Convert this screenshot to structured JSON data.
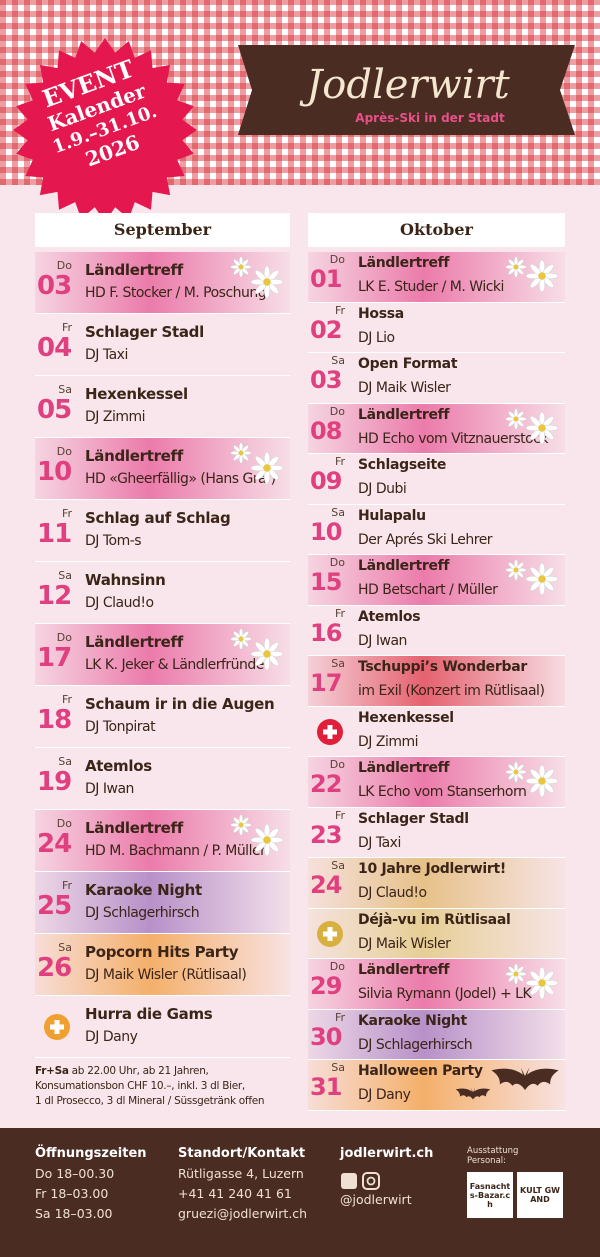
{
  "header": {
    "logo": "Jodlerwirt",
    "tagline": "Après-Ski in der Stadt",
    "badge": [
      "EVENT",
      "Kalender",
      "1.9.–31.10.",
      "2026"
    ]
  },
  "months": [
    {
      "title": "September",
      "events": [
        {
          "weekday": "Do",
          "day": "03",
          "title": "Ländlertreff",
          "subtitle": "HD F. Stocker / M. Poschung",
          "color": "#e8609a",
          "decoration": "edelweiss"
        },
        {
          "weekday": "Fr",
          "day": "04",
          "title": "Schlager Stadl",
          "subtitle": "DJ Taxi"
        },
        {
          "weekday": "Sa",
          "day": "05",
          "title": "Hexenkessel",
          "subtitle": "DJ Zimmi"
        },
        {
          "weekday": "Do",
          "day": "10",
          "title": "Ländlertreff",
          "subtitle": "HD «Gheerfällig» (Hans Graf)",
          "color": "#e8609a",
          "decoration": "edelweiss"
        },
        {
          "weekday": "Fr",
          "day": "11",
          "title": "Schlag auf Schlag",
          "subtitle": "DJ Tom-s"
        },
        {
          "weekday": "Sa",
          "day": "12",
          "title": "Wahnsinn",
          "subtitle": "DJ Claud!o"
        },
        {
          "weekday": "Do",
          "day": "17",
          "title": "Ländlertreff",
          "subtitle": "LK K. Jeker & Ländlerfründe",
          "color": "#e8609a",
          "decoration": "edelweiss"
        },
        {
          "weekday": "Fr",
          "day": "18",
          "title": "Schaum ir in die Augen",
          "subtitle": "DJ Tonpirat"
        },
        {
          "weekday": "Sa",
          "day": "19",
          "title": "Atemlos",
          "subtitle": "DJ Iwan"
        },
        {
          "weekday": "Do",
          "day": "24",
          "title": "Ländlertreff",
          "subtitle": "HD M. Bachmann / P. Müller",
          "color": "#e8609a",
          "decoration": "edelweiss"
        },
        {
          "weekday": "Fr",
          "day": "25",
          "title": "Karaoke Night",
          "subtitle": "DJ Schlagerhirsch",
          "color": "#a77bc0"
        },
        {
          "weekday": "Sa",
          "day": "26",
          "title": "Popcorn Hits Party",
          "subtitle": "DJ Maik Wisler (Rütlisaal)",
          "color": "#f3a24a"
        },
        {
          "icon": "#f0a030",
          "title": "Hurra die Gams",
          "subtitle": "DJ Dany"
        }
      ]
    },
    {
      "title": "Oktober",
      "events": [
        {
          "weekday": "Do",
          "day": "01",
          "title": "Ländlertreff",
          "subtitle": "LK E. Studer / M. Wicki",
          "color": "#e8609a",
          "decoration": "edelweiss"
        },
        {
          "weekday": "Fr",
          "day": "02",
          "title": "Hossa",
          "subtitle": "DJ Lio"
        },
        {
          "weekday": "Sa",
          "day": "03",
          "title": "Open Format",
          "subtitle": "DJ Maik Wisler"
        },
        {
          "weekday": "Do",
          "day": "08",
          "title": "Ländlertreff",
          "subtitle": "HD Echo vom Vitznauerstock",
          "color": "#e8609a",
          "decoration": "edelweiss"
        },
        {
          "weekday": "Fr",
          "day": "09",
          "title": "Schlagseite",
          "subtitle": "DJ Dubi"
        },
        {
          "weekday": "Sa",
          "day": "10",
          "title": "Hulapalu",
          "subtitle": "Der Aprés Ski Lehrer"
        },
        {
          "weekday": "Do",
          "day": "15",
          "title": "Ländlertreff",
          "subtitle": "HD Betschart / Müller",
          "color": "#e8609a",
          "decoration": "edelweiss"
        },
        {
          "weekday": "Fr",
          "day": "16",
          "title": "Atemlos",
          "subtitle": "DJ Iwan"
        },
        {
          "weekday": "Sa",
          "day": "17",
          "title": "Tschuppi’s Wonderbar",
          "subtitle": "im Exil (Konzert im Rütlisaal)",
          "color": "#e04050"
        },
        {
          "icon": "#e0203a",
          "title": "Hexenkessel",
          "subtitle": "DJ Zimmi"
        },
        {
          "weekday": "Do",
          "day": "22",
          "title": "Ländlertreff",
          "subtitle": "LK Echo vom Stanserhorn",
          "color": "#e8609a",
          "decoration": "edelweiss"
        },
        {
          "weekday": "Fr",
          "day": "23",
          "title": "Schlager Stadl",
          "subtitle": "DJ Taxi"
        },
        {
          "weekday": "Sa",
          "day": "24",
          "title": "10 Jahre Jodlerwirt!",
          "subtitle": "DJ Claud!o",
          "color": "#e2b870"
        },
        {
          "icon": "#d8b040",
          "title": "Déjà-vu im Rütlisaal",
          "subtitle": "DJ Maik Wisler",
          "color": "#e2c880"
        },
        {
          "weekday": "Do",
          "day": "29",
          "title": "Ländlertreff",
          "subtitle": "Silvia Rymann (Jodel) + LK",
          "color": "#e8609a",
          "decoration": "edelweiss"
        },
        {
          "weekday": "Fr",
          "day": "30",
          "title": "Karaoke Night",
          "subtitle": "DJ Schlagerhirsch",
          "color": "#a77bc0"
        },
        {
          "weekday": "Sa",
          "day": "31",
          "title": "Halloween Party",
          "subtitle": "DJ Dany",
          "color": "#f3a24a",
          "decoration": "bats"
        }
      ]
    }
  ],
  "note": {
    "lead": "Fr+Sa",
    "lines": [
      "ab 22.00 Uhr, ab 21 Jahren,",
      "Konsumationsbon CHF 10.–, inkl. 3 dl Bier,",
      "1 dl Prosecco, 3 dl Mineral / Süssgetränk offen"
    ]
  },
  "footer": {
    "hours": {
      "title": "Öffnungszeiten",
      "lines": [
        "Do 18–00.30",
        "Fr 18–03.00",
        "Sa 18–03.00"
      ]
    },
    "contact": {
      "title": "Standort/Kontakt",
      "lines": [
        "Rütligasse 4, Luzern",
        "+41 41 240 41 61",
        "gruezi@jodlerwirt.ch"
      ]
    },
    "web": {
      "title": "jodlerwirt.ch",
      "handle": "@jodlerwirt"
    },
    "sponsors": {
      "title": "Ausstattung Personal:",
      "logos": [
        "Fasnachts-Bazar.ch",
        "KULT GWAND"
      ]
    }
  }
}
